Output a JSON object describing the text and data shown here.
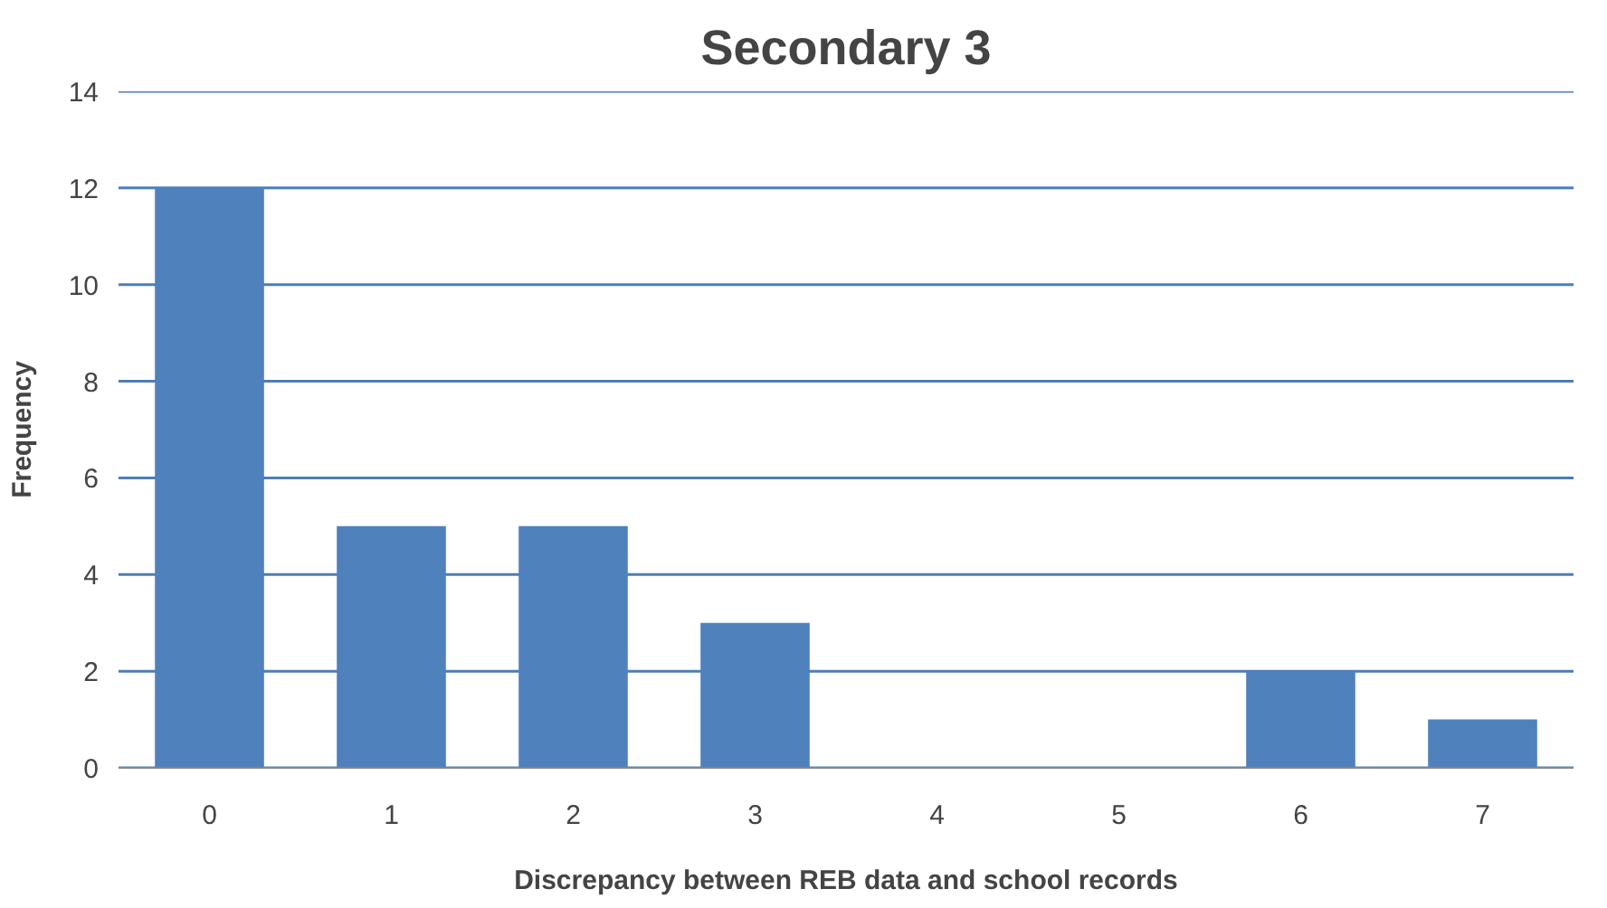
{
  "chart_data": {
    "type": "bar",
    "title": "Secondary 3",
    "xlabel": "Discrepancy between REB data and school records",
    "ylabel": "Frequency",
    "categories": [
      "0",
      "1",
      "2",
      "3",
      "4",
      "5",
      "6",
      "7"
    ],
    "values": [
      12,
      5,
      5,
      3,
      0,
      0,
      2,
      1
    ],
    "color": "#4f81bd",
    "ylim": [
      0,
      14
    ],
    "yticks": [
      0,
      2,
      4,
      6,
      8,
      10,
      12,
      14
    ],
    "grid": "y"
  }
}
